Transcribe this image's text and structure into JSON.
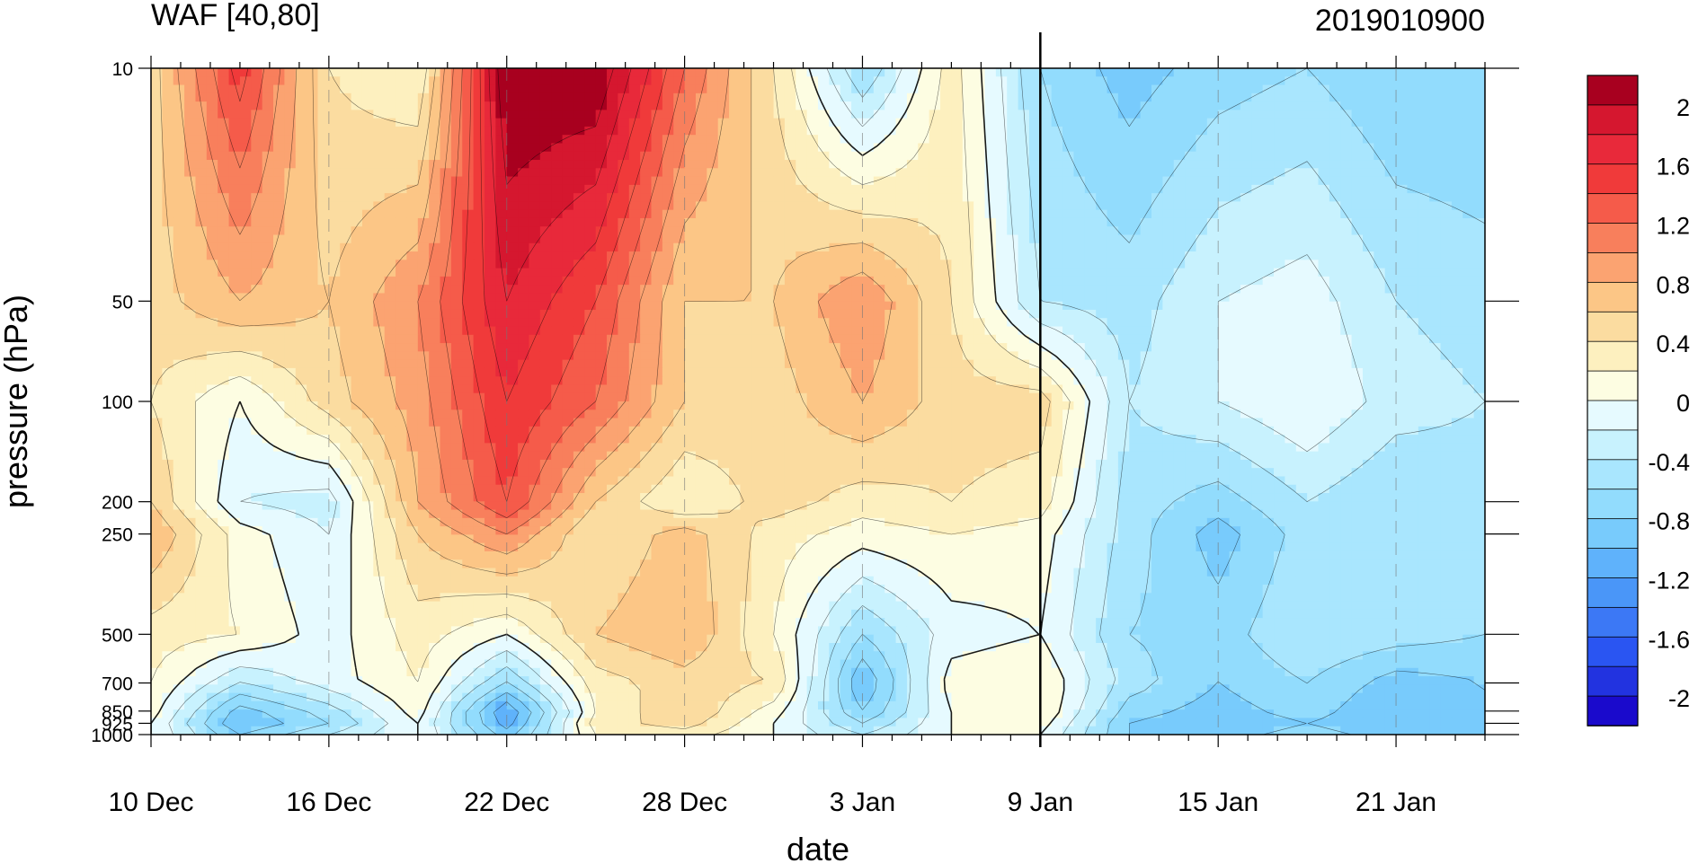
{
  "chart_data": {
    "type": "heatmap",
    "title": "WAF [40,80]",
    "subtitle": "2019010900",
    "xlabel": "date",
    "ylabel": "pressure (hPa)",
    "x_tick_labels": [
      "10 Dec",
      "16 Dec",
      "22 Dec",
      "28 Dec",
      "3 Jan",
      "9 Jan",
      "15 Jan",
      "21 Jan"
    ],
    "x_range_days": [
      0,
      45
    ],
    "x_major_tick_days": [
      0,
      6,
      12,
      18,
      24,
      30,
      36,
      42
    ],
    "current_date_line_day": 30,
    "y_levels_hPa": [
      10,
      50,
      100,
      200,
      250,
      500,
      700,
      850,
      925,
      1000
    ],
    "y_tick_labels": [
      "10",
      "50",
      "100",
      "200",
      "250",
      "500",
      "700",
      "850",
      "925",
      "1000"
    ],
    "y_range_hPa": [
      10,
      1000
    ],
    "y_scale": "log",
    "colorbar": {
      "levels": [
        -2.2,
        -2.0,
        -1.8,
        -1.6,
        -1.4,
        -1.2,
        -1.0,
        -0.8,
        -0.6,
        -0.4,
        -0.2,
        0,
        0.2,
        0.4,
        0.6,
        0.8,
        1.0,
        1.2,
        1.4,
        1.6,
        1.8,
        2.0,
        2.2
      ],
      "labels": [
        "2",
        "1.6",
        "1.2",
        "0.8",
        "0.4",
        "0",
        "-0.4",
        "-0.8",
        "-1.2",
        "-1.6",
        "-2"
      ],
      "colors": [
        "#1a0acc",
        "#2233e0",
        "#2a55f2",
        "#3c78f5",
        "#4a96f8",
        "#5fb2fb",
        "#78cbfc",
        "#92dcfd",
        "#a9e6fe",
        "#c8f2fe",
        "#e6faff",
        "#fdfde2",
        "#fdf0bf",
        "#fbdca0",
        "#fcc686",
        "#fba371",
        "#f87f5c",
        "#f55b4a",
        "#f03a3a",
        "#e8293a",
        "#d5172f",
        "#a8001f"
      ]
    },
    "grid": "dashed verticals at major ticks",
    "values_note": "",
    "series": [
      {
        "name": "",
        "days": [
          0,
          3,
          6,
          9,
          12,
          15,
          18,
          21,
          24,
          27,
          30,
          33,
          36,
          39,
          42,
          45
        ],
        "rows_by_level_10_to_1000": [
          [
            0.5,
            1.5,
            0.4,
            0.2,
            2.2,
            2.2,
            1.2,
            0.4,
            -0.6,
            0.3,
            -0.6,
            -0.9,
            -0.7,
            -0.6,
            -0.8,
            -0.8
          ],
          [
            0.5,
            0.8,
            0.6,
            1.0,
            1.8,
            1.4,
            0.6,
            0.6,
            1.0,
            0.4,
            -0.4,
            -0.5,
            -0.2,
            -0.1,
            -0.4,
            -0.5
          ],
          [
            0.4,
            0.0,
            0.5,
            0.9,
            1.6,
            1.2,
            0.6,
            0.5,
            0.8,
            0.5,
            0.5,
            -0.4,
            -0.2,
            0.0,
            -0.3,
            -0.4
          ],
          [
            0.6,
            -0.2,
            -0.3,
            0.8,
            1.4,
            0.6,
            0.2,
            0.5,
            0.3,
            0.4,
            0.3,
            -0.5,
            -0.7,
            -0.4,
            -0.6,
            -0.5
          ],
          [
            0.8,
            0.1,
            -0.2,
            0.6,
            1.0,
            0.4,
            0.7,
            0.3,
            0.1,
            0.2,
            0.1,
            -0.5,
            -0.9,
            -0.5,
            -0.6,
            -0.5
          ],
          [
            0.3,
            0.2,
            -0.1,
            0.3,
            0.0,
            0.6,
            0.8,
            0.2,
            -0.6,
            -0.1,
            0.0,
            -0.6,
            -0.7,
            -0.4,
            -0.5,
            -0.6
          ],
          [
            0.2,
            -0.4,
            -0.1,
            0.2,
            -0.6,
            0.3,
            0.5,
            0.4,
            -1.0,
            0.1,
            0.2,
            -0.5,
            -0.8,
            -0.6,
            -0.9,
            -0.8
          ],
          [
            0.1,
            -0.9,
            -0.5,
            0.1,
            -1.2,
            0.2,
            0.6,
            0.1,
            -0.8,
            0.0,
            0.2,
            -0.7,
            -0.9,
            -0.7,
            -1.0,
            -0.8
          ],
          [
            0.0,
            -1.0,
            -0.6,
            0.0,
            -1.1,
            0.3,
            0.5,
            0.0,
            -0.6,
            0.0,
            0.1,
            -0.8,
            -1.0,
            -0.8,
            -1.0,
            -0.8
          ],
          [
            0.0,
            -0.8,
            -0.4,
            0.0,
            -0.9,
            0.2,
            0.3,
            0.0,
            -0.4,
            0.0,
            0.0,
            -0.8,
            -0.9,
            -0.7,
            -0.9,
            -0.8
          ]
        ]
      }
    ]
  }
}
